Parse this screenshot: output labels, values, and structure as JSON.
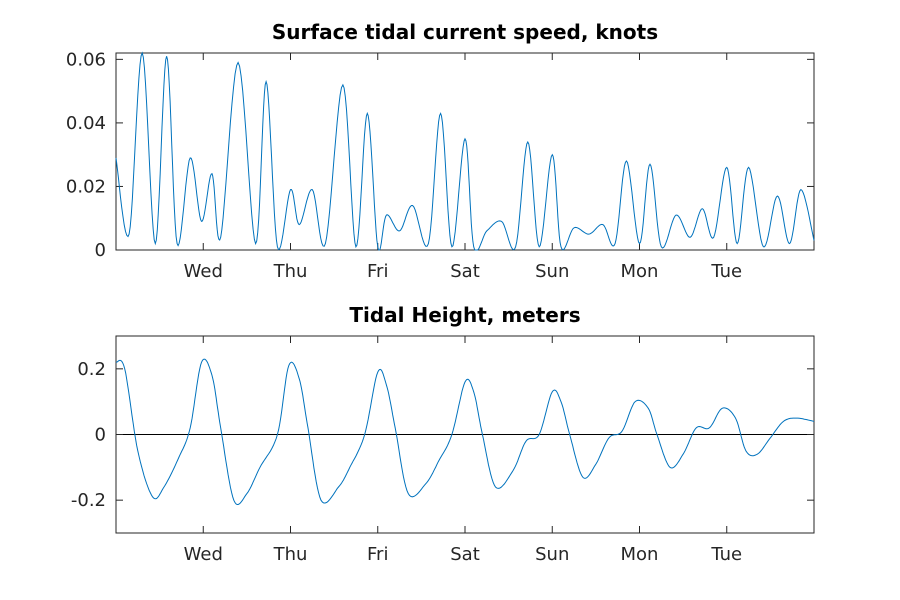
{
  "chart_data": [
    {
      "type": "line",
      "title": "Surface tidal current speed, knots",
      "xlabel": "",
      "ylabel": "",
      "x_ticks": [
        "Wed",
        "Thu",
        "Fri",
        "Sat",
        "Sun",
        "Mon",
        "Tue"
      ],
      "xlim_days": [
        0,
        8
      ],
      "ylim": [
        0,
        0.062
      ],
      "y_ticks": [
        0,
        0.02,
        0.04,
        0.06
      ],
      "y_tick_labels": [
        "0",
        "0.02",
        "0.04",
        "0.06"
      ],
      "grid": false,
      "series_color": "#0072bd",
      "series": [
        {
          "x": [
            0.0,
            0.15,
            0.3,
            0.45,
            0.58,
            0.7,
            0.85,
            0.98,
            1.1,
            1.2,
            1.4,
            1.6,
            1.72,
            1.85,
            2.0,
            2.1,
            2.25,
            2.4,
            2.6,
            2.75,
            2.88,
            3.0,
            3.1,
            3.25,
            3.4,
            3.58,
            3.72,
            3.85,
            4.0,
            4.1,
            4.25,
            4.42,
            4.58,
            4.72,
            4.85,
            5.0,
            5.1,
            5.25,
            5.42,
            5.58,
            5.72,
            5.85,
            6.0,
            6.12,
            6.25,
            6.42,
            6.58,
            6.72,
            6.85,
            7.0,
            7.12,
            7.25,
            7.42,
            7.58,
            7.72,
            7.85,
            8.0
          ],
          "y": [
            0.029,
            0.005,
            0.062,
            0.002,
            0.061,
            0.002,
            0.029,
            0.009,
            0.024,
            0.004,
            0.059,
            0.002,
            0.053,
            0.001,
            0.019,
            0.008,
            0.019,
            0.002,
            0.052,
            0.001,
            0.043,
            0.001,
            0.011,
            0.006,
            0.014,
            0.002,
            0.043,
            0.001,
            0.035,
            0.001,
            0.006,
            0.009,
            0.001,
            0.034,
            0.001,
            0.03,
            0.001,
            0.007,
            0.005,
            0.008,
            0.002,
            0.028,
            0.002,
            0.027,
            0.001,
            0.011,
            0.004,
            0.013,
            0.004,
            0.026,
            0.002,
            0.026,
            0.001,
            0.017,
            0.002,
            0.019,
            0.003
          ]
        }
      ]
    },
    {
      "type": "line",
      "title": "Tidal Height, meters",
      "xlabel": "",
      "ylabel": "",
      "x_ticks": [
        "Wed",
        "Thu",
        "Fri",
        "Sat",
        "Sun",
        "Mon",
        "Tue"
      ],
      "xlim_days": [
        0,
        8
      ],
      "ylim": [
        -0.3,
        0.3
      ],
      "y_ticks": [
        -0.2,
        0,
        0.2
      ],
      "y_tick_labels": [
        "-0.2",
        "0",
        "0.2"
      ],
      "zero_line": true,
      "grid": false,
      "series_color": "#0072bd",
      "series": [
        {
          "x": [
            0.0,
            0.1,
            0.25,
            0.42,
            0.55,
            0.72,
            0.85,
            0.98,
            1.1,
            1.2,
            1.35,
            1.5,
            1.65,
            1.85,
            1.98,
            2.1,
            2.2,
            2.35,
            2.55,
            2.68,
            2.85,
            3.0,
            3.1,
            3.2,
            3.35,
            3.55,
            3.7,
            3.85,
            4.0,
            4.1,
            4.2,
            4.35,
            4.55,
            4.7,
            4.85,
            5.0,
            5.1,
            5.2,
            5.35,
            5.5,
            5.65,
            5.8,
            5.95,
            6.1,
            6.2,
            6.35,
            6.5,
            6.65,
            6.8,
            6.95,
            7.1,
            7.22,
            7.35,
            7.5,
            7.65,
            7.8,
            8.0
          ],
          "y": [
            0.22,
            0.2,
            -0.05,
            -0.19,
            -0.16,
            -0.07,
            0.02,
            0.22,
            0.18,
            0.02,
            -0.2,
            -0.18,
            -0.1,
            0.0,
            0.21,
            0.17,
            0.02,
            -0.2,
            -0.16,
            -0.1,
            0.0,
            0.19,
            0.15,
            0.02,
            -0.18,
            -0.15,
            -0.08,
            0.0,
            0.16,
            0.13,
            0.0,
            -0.16,
            -0.11,
            -0.02,
            0.0,
            0.13,
            0.1,
            0.0,
            -0.13,
            -0.09,
            -0.01,
            0.01,
            0.1,
            0.08,
            0.0,
            -0.1,
            -0.06,
            0.02,
            0.02,
            0.08,
            0.05,
            -0.05,
            -0.06,
            -0.01,
            0.04,
            0.05,
            0.04
          ]
        }
      ]
    }
  ]
}
